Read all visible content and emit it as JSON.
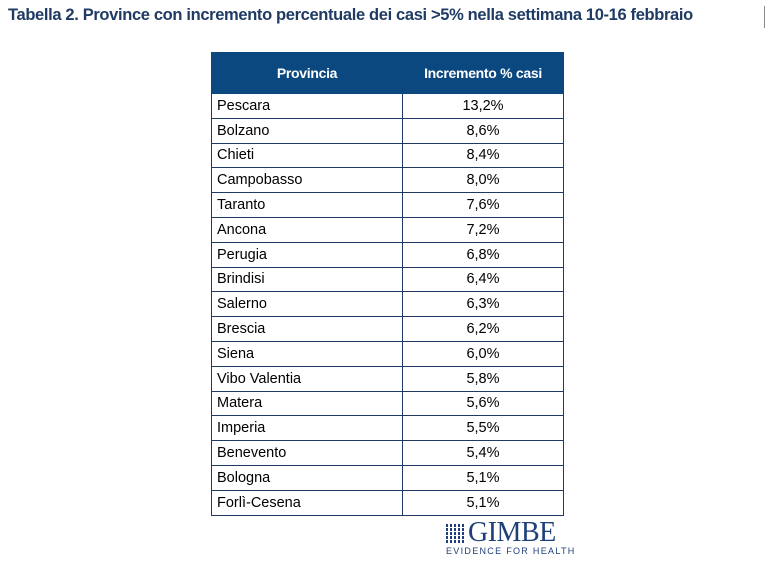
{
  "title": "Tabella 2. Province con incremento percentuale dei casi >5% nella settimana 10-16 febbraio",
  "table": {
    "headers": [
      "Provincia",
      "Incremento % casi"
    ],
    "rows": [
      [
        "Pescara",
        "13,2%"
      ],
      [
        "Bolzano",
        "8,6%"
      ],
      [
        "Chieti",
        "8,4%"
      ],
      [
        "Campobasso",
        "8,0%"
      ],
      [
        "Taranto",
        "7,6%"
      ],
      [
        "Ancona",
        "7,2%"
      ],
      [
        "Perugia",
        "6,8%"
      ],
      [
        "Brindisi",
        "6,4%"
      ],
      [
        "Salerno",
        "6,3%"
      ],
      [
        "Brescia",
        "6,2%"
      ],
      [
        "Siena",
        "6,0%"
      ],
      [
        "Vibo Valentia",
        "5,8%"
      ],
      [
        "Matera",
        "5,6%"
      ],
      [
        "Imperia",
        "5,5%"
      ],
      [
        "Benevento",
        "5,4%"
      ],
      [
        "Bologna",
        "5,1%"
      ],
      [
        "Forlì-Cesena",
        "5,1%"
      ]
    ]
  },
  "logo": {
    "name": "GIMBE",
    "tagline": "EVIDENCE FOR HEALTH"
  },
  "colors": {
    "header": "#0b4880",
    "title": "#1f3b63"
  }
}
